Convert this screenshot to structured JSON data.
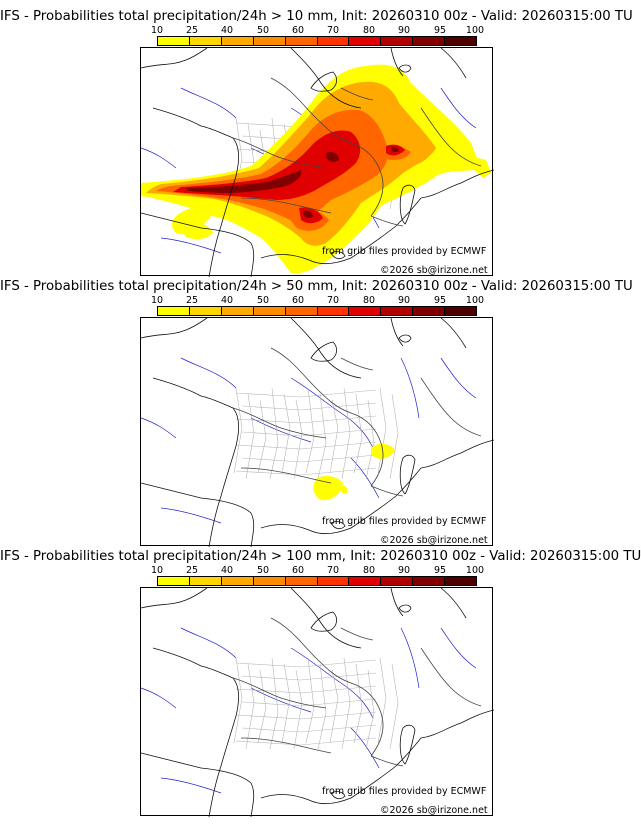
{
  "colorbar": {
    "ticks": [
      "10",
      "25",
      "40",
      "50",
      "60",
      "70",
      "80",
      "90",
      "95",
      "100"
    ],
    "colors": [
      "#ffff00",
      "#ffd700",
      "#ffaa00",
      "#ff8c00",
      "#ff6600",
      "#ff3300",
      "#e00000",
      "#b00000",
      "#800000",
      "#4d0000"
    ]
  },
  "credits": {
    "source": "from grib files provided by ECMWF",
    "copyright": "©2026 sb@irizone.net"
  },
  "panels": [
    {
      "title": "IFS - Probabilities total precipitation/24h > 10 mm, Init: 20260310 00z - Valid: 20260315:00 TU",
      "threshold_mm": 10
    },
    {
      "title": "IFS - Probabilities total precipitation/24h > 50 mm, Init: 20260310 00z - Valid: 20260315:00 TU",
      "threshold_mm": 50
    },
    {
      "title": "IFS - Probabilities total precipitation/24h > 100 mm, Init: 20260310 00z - Valid: 20260315:00 TU",
      "threshold_mm": 100
    }
  ]
}
